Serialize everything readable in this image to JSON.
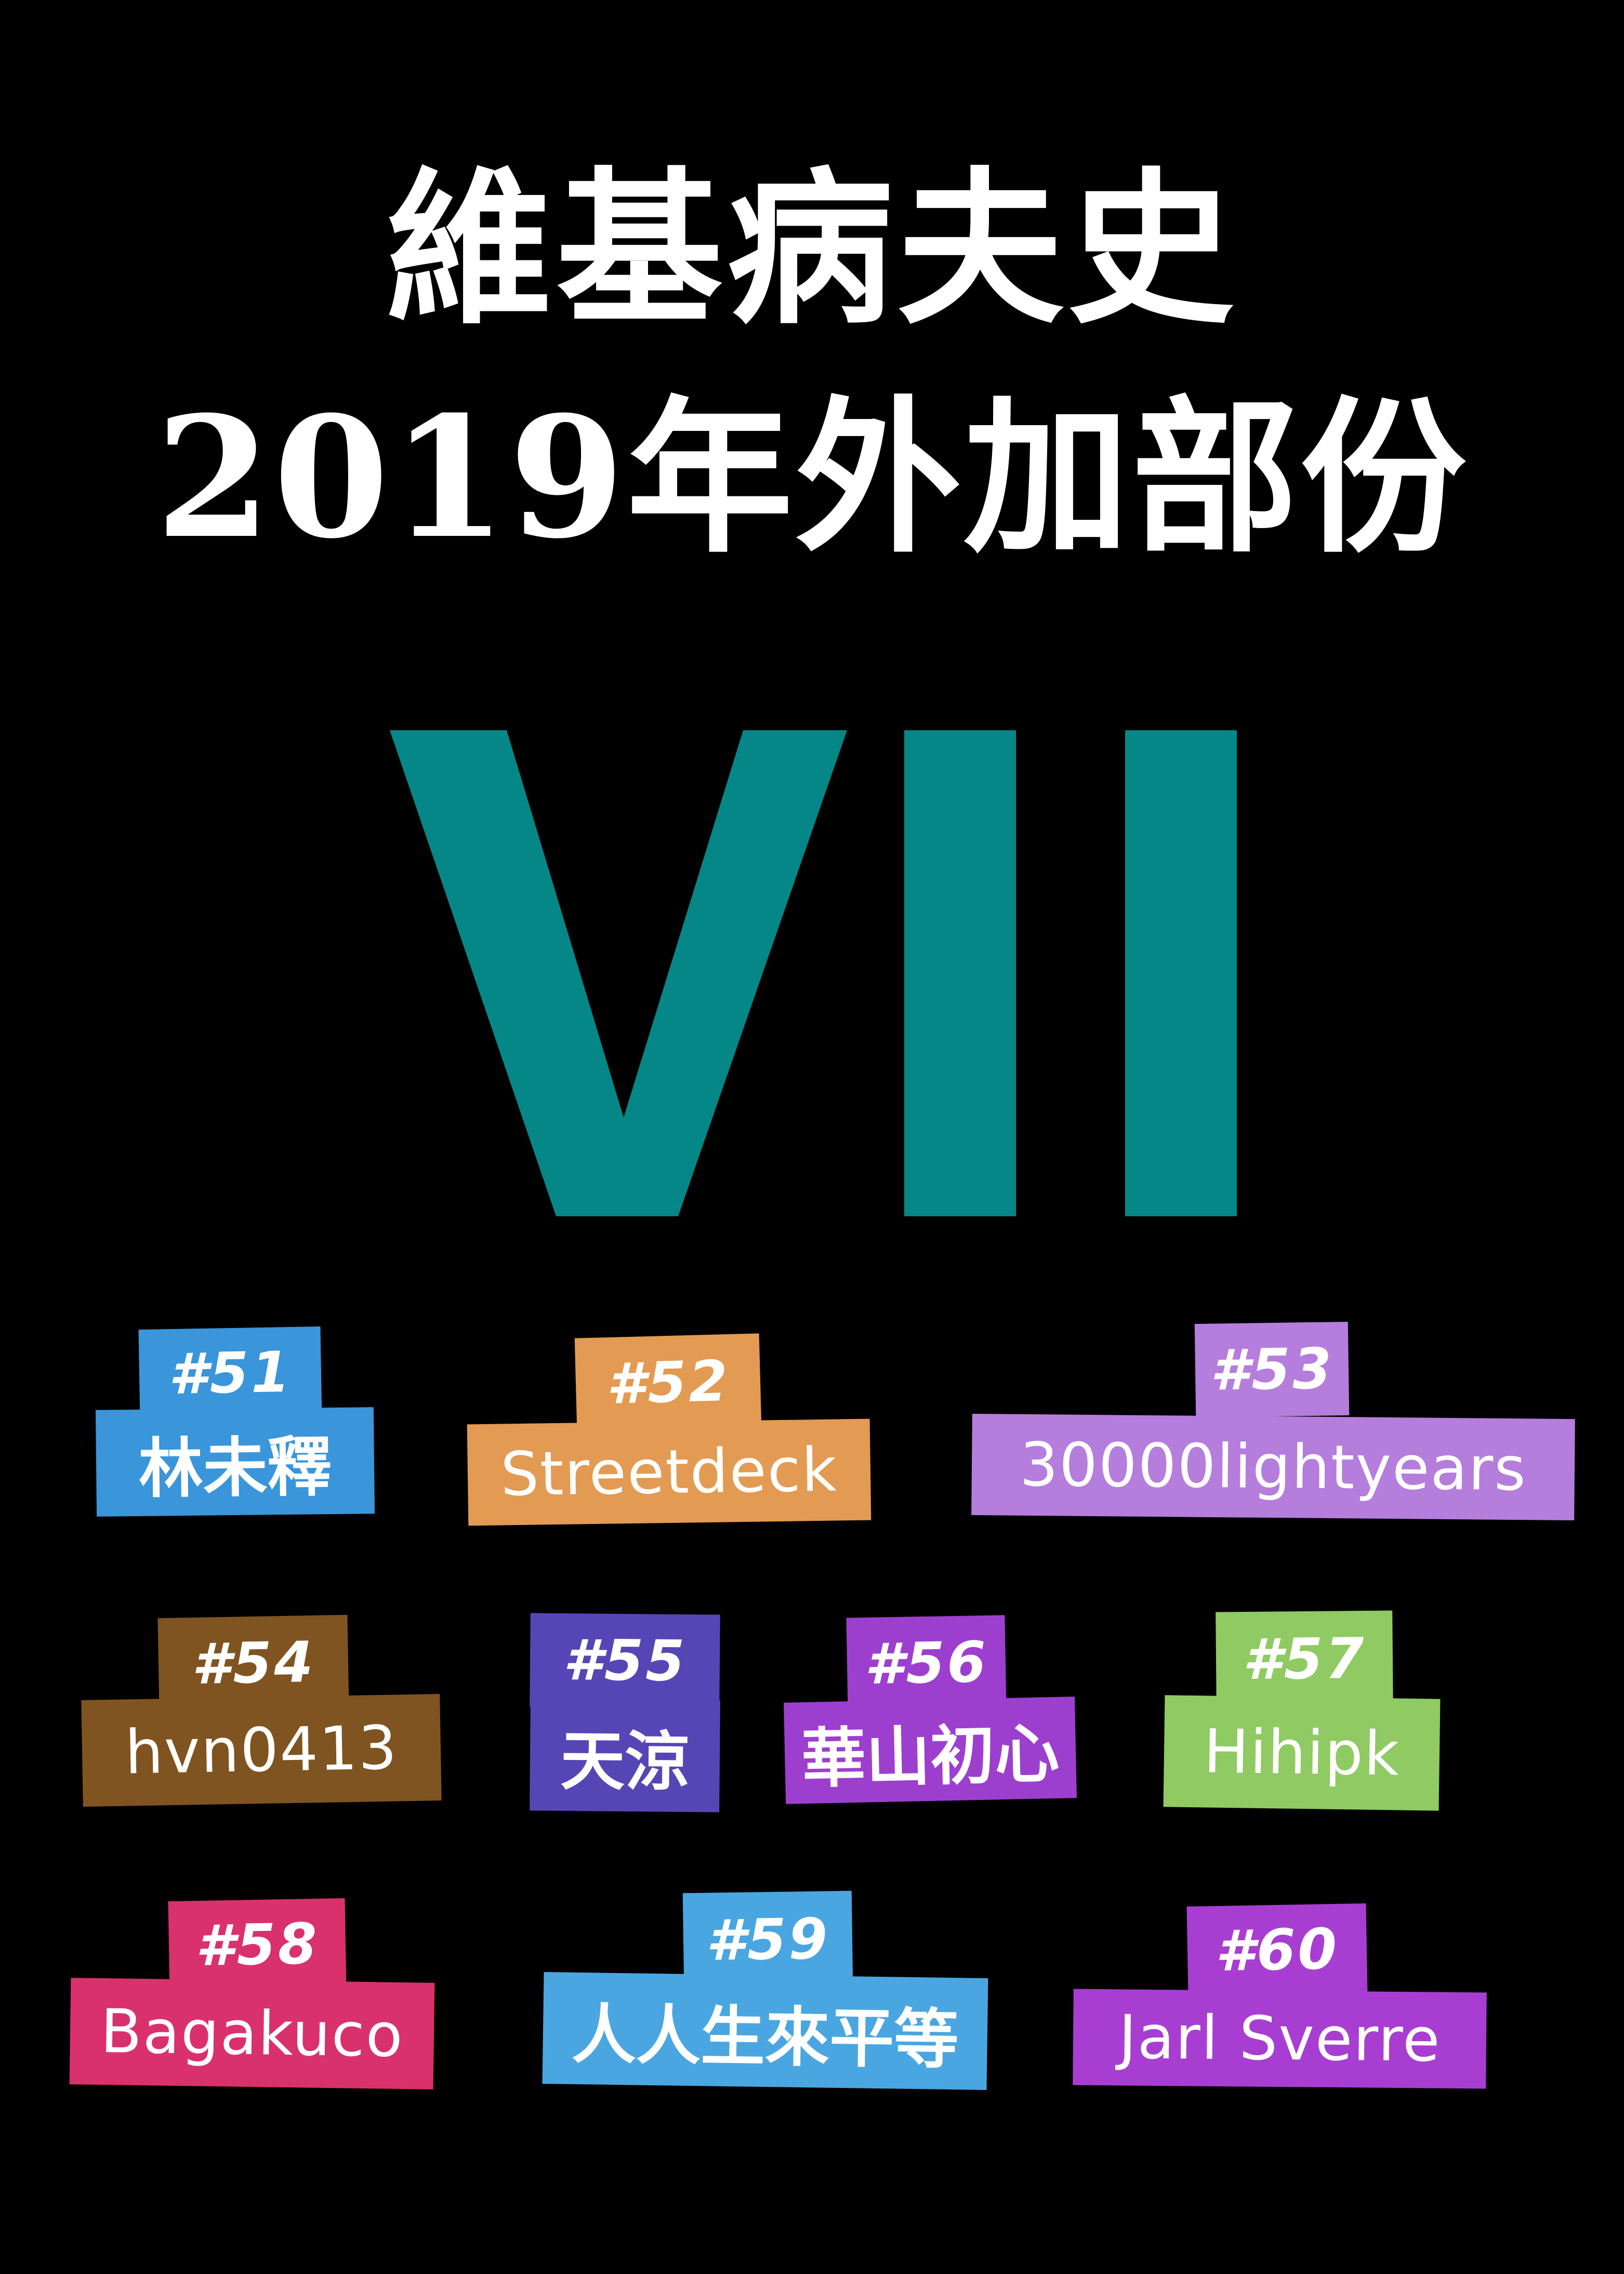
{
  "title": {
    "line1": "維基病夫史",
    "line2": "2019年外加部份",
    "color": "#ffffff"
  },
  "volume_numeral": {
    "text": "VII",
    "color": "#058787"
  },
  "contributors": [
    {
      "number": "#51",
      "name": "林未釋",
      "color": "#3a95da"
    },
    {
      "number": "#52",
      "name": "Streetdeck",
      "color": "#e39a52"
    },
    {
      "number": "#53",
      "name": "30000lightyears",
      "color": "#b57ddc"
    },
    {
      "number": "#54",
      "name": "hvn0413",
      "color": "#7f5421"
    },
    {
      "number": "#55",
      "name": "天涼",
      "color": "#5646b5"
    },
    {
      "number": "#56",
      "name": "華山初心",
      "color": "#9c3fcf"
    },
    {
      "number": "#57",
      "name": "Hihipk",
      "color": "#8fca63"
    },
    {
      "number": "#58",
      "name": "Bagakuco",
      "color": "#d9316c"
    },
    {
      "number": "#59",
      "name": "人人生來平等",
      "color": "#4aa6e0"
    },
    {
      "number": "#60",
      "name": "Jarl Sverre",
      "color": "#a83ed1"
    }
  ]
}
